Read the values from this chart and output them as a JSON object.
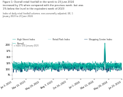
{
  "title_line1": "Figure 1: Overall retail footfall in the week to 23 June 2024",
  "title_line2": "increased by 2% when compared with the previous week, but was",
  "title_line3": "1% below the level in the equivalent week of 2023",
  "subtitle1": "Index of daily retail footfall volumes, non-seasonally adjusted, UK, 1",
  "subtitle2": "January 2023 to 23 June 2024",
  "ref_label": "= Index 1/01 January 2023",
  "legend": [
    "High Street Index",
    "Retail Park Index",
    "Shopping Centre Index",
    "Overall"
  ],
  "colors": [
    "#009c8f",
    "#7ecfcf",
    "#003865",
    "#00b09b"
  ],
  "background": "#ffffff",
  "ylim": [
    60,
    210
  ],
  "yticks": [
    75,
    100,
    125,
    150,
    175,
    200
  ],
  "num_points": 540,
  "xtick_pos": [
    0,
    68,
    135,
    203,
    270,
    338,
    405,
    473,
    539
  ],
  "xtick_lbl": [
    "Jan 3, 2023",
    "Mar 13, 2023",
    "May 29, 2023",
    "Aug 7, 2023",
    "Oct 16, 2023",
    "Jan 1, 2024",
    "Mar 11, 2024",
    "May 20, 2024",
    "Jun 23, 2024"
  ]
}
